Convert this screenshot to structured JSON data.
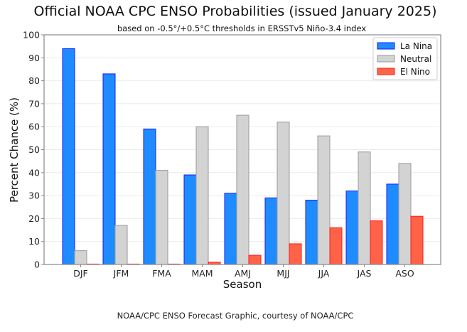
{
  "chart_data": {
    "type": "bar",
    "title": "Official NOAA CPC ENSO Probabilities (issued January 2025)",
    "subtitle": "based on -0.5°/+0.5°C thresholds in ERSSTv5 Niño-3.4 index",
    "xlabel": "Season",
    "ylabel": "Percent Chance (%)",
    "ylim": [
      0,
      100
    ],
    "yticks": [
      "0",
      "10",
      "20",
      "30",
      "40",
      "50",
      "60",
      "70",
      "80",
      "90",
      "100"
    ],
    "grid": true,
    "legend_position": "top-right",
    "categories": [
      "DJF",
      "JFM",
      "FMA",
      "MAM",
      "AMJ",
      "MJJ",
      "JJA",
      "JAS",
      "ASO"
    ],
    "series": [
      {
        "name": "La Nina",
        "color": "#1e8cff",
        "edge": "#1a1aff",
        "values": [
          94,
          83,
          59,
          39,
          31,
          29,
          28,
          32,
          35
        ]
      },
      {
        "name": "Neutral",
        "color": "#d3d3d3",
        "edge": "#999999",
        "values": [
          6,
          17,
          41,
          60,
          65,
          62,
          56,
          49,
          44
        ]
      },
      {
        "name": "El Nino",
        "color": "#ff6347",
        "edge": "#ff1a1a",
        "values": [
          0,
          0,
          0,
          1,
          4,
          9,
          16,
          19,
          21
        ]
      }
    ],
    "footer": "NOAA/CPC ENSO Forecast Graphic, courtesy of NOAA/CPC"
  }
}
